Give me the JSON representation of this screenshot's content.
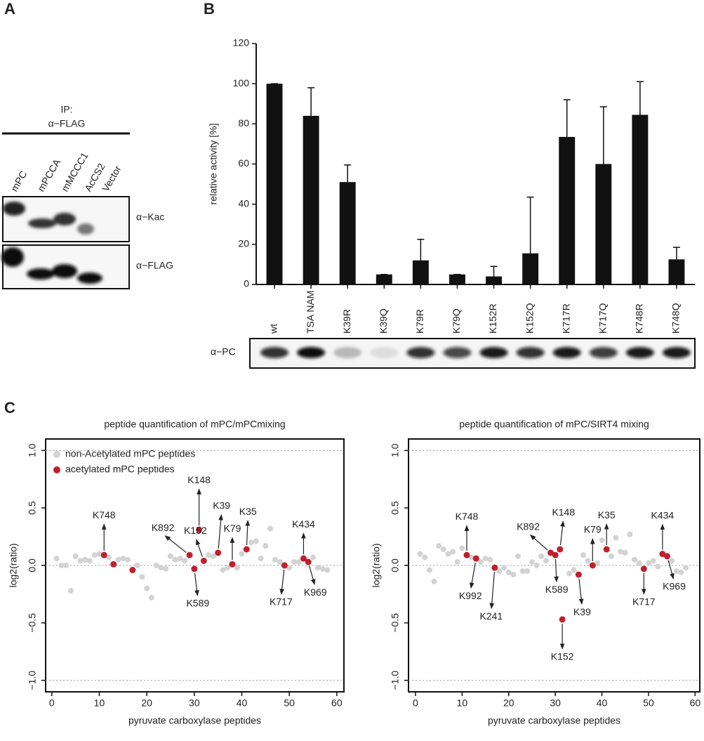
{
  "panel_labels": [
    "A",
    "B",
    "C"
  ],
  "blot_a": {
    "ip_label": "IP:",
    "ip_antibody": "α−FLAG",
    "lanes": [
      "mPC",
      "mPCCA",
      "mMCCC1",
      "AcCS2",
      "Vector"
    ],
    "rows": [
      "α−Kac",
      "α−FLAG"
    ]
  },
  "blot_b": {
    "label": "α−PC"
  },
  "chart_data": [
    {
      "type": "bar",
      "ylabel": "relative activity [%]",
      "categories": [
        "wt",
        "TSA NAM",
        "K39R",
        "K39Q",
        "K79R",
        "K79Q",
        "K152R",
        "K152Q",
        "K717R",
        "K717Q",
        "K748R",
        "K748Q"
      ],
      "values": [
        100,
        84,
        51,
        5,
        12,
        5,
        4,
        15.5,
        73.5,
        60,
        84.5,
        12.5
      ],
      "errors": [
        0,
        14,
        8.5,
        0,
        10.5,
        0,
        5,
        28,
        18.5,
        28.5,
        16.5,
        6
      ],
      "color": "#111111",
      "ylim": [
        0,
        120
      ],
      "yticks": [
        0,
        20,
        40,
        60,
        80,
        100,
        120
      ]
    },
    {
      "type": "scatter",
      "title": "peptide quantification of mPC/mPCmixing",
      "xlabel": "pyruvate carboxylase peptides",
      "ylabel": "log2(ratio)",
      "xlim": [
        -1.3,
        61.5
      ],
      "xticks": [
        0,
        10,
        20,
        30,
        40,
        50,
        60
      ],
      "ylim": [
        -1.1,
        1.1
      ],
      "yticks": [
        {
          "value": -1,
          "label": "−1.0"
        },
        {
          "value": -0.5,
          "label": "−0.5"
        },
        {
          "value": 0,
          "label": "0.0"
        },
        {
          "value": 0.5,
          "label": "0.5"
        },
        {
          "value": 1,
          "label": "1.0"
        }
      ],
      "hlines": [
        -1,
        0,
        1
      ],
      "legend": "upper left",
      "series": [
        {
          "name": "non-Acetylated mPC peptides",
          "color": "#d3d3d3",
          "x": [
            1,
            2,
            3,
            4,
            5,
            6,
            7,
            8,
            9,
            10,
            12,
            14,
            15,
            16,
            18,
            19,
            20,
            21,
            22,
            23,
            24,
            25,
            26,
            27,
            28,
            33,
            34,
            36,
            37,
            39,
            40,
            42,
            43,
            44,
            45,
            46,
            47,
            48,
            50,
            51,
            52,
            55,
            56,
            57,
            58
          ],
          "values": [
            0.06,
            0,
            0,
            -0.22,
            0.08,
            0.04,
            0.05,
            0.04,
            0.09,
            0.1,
            0.07,
            0.05,
            0.06,
            0.05,
            0,
            -0.1,
            -0.2,
            -0.28,
            0,
            -0.02,
            -0.03,
            0.08,
            0.05,
            0.06,
            0.04,
            0.09,
            0.08,
            -0.04,
            -0.02,
            -0.02,
            0.1,
            0.2,
            0.21,
            0.06,
            0.17,
            0.32,
            0.05,
            0.03,
            -0.02,
            0.03,
            0.03,
            0.07,
            -0.02,
            -0.03,
            -0.04
          ]
        },
        {
          "name": "acetylated mPC peptides",
          "color": "#c0202c",
          "x": [
            11,
            13,
            17,
            29,
            30,
            31,
            32,
            35,
            38,
            41,
            49,
            53,
            54
          ],
          "values": [
            0.09,
            0.01,
            -0.04,
            0.09,
            -0.03,
            0.31,
            0.04,
            0.11,
            0.01,
            0.14,
            0,
            0.06,
            0.03
          ],
          "labels": [
            "K748",
            null,
            null,
            "K892",
            "K589",
            "K148",
            "K152",
            "K39",
            "K79",
            "K35",
            "K717",
            "K434",
            "K969"
          ]
        }
      ]
    },
    {
      "type": "scatter",
      "title": "peptide quantification of mPC/SIRT4 mixing",
      "xlabel": "pyruvate carboxylase peptides",
      "ylabel": "log2(ratio)",
      "xlim": [
        -1.5,
        61
      ],
      "xticks": [
        0,
        10,
        20,
        30,
        40,
        50,
        60
      ],
      "ylim": [
        -1.1,
        1.1
      ],
      "yticks": [
        {
          "value": -1,
          "label": "−1.0"
        },
        {
          "value": -0.5,
          "label": "−0.5"
        },
        {
          "value": 0,
          "label": "0.0"
        },
        {
          "value": 0.5,
          "label": "0.5"
        },
        {
          "value": 1,
          "label": "1.0"
        }
      ],
      "hlines": [
        -1,
        0,
        1
      ],
      "legend": false,
      "series": [
        {
          "name": "non-Acetylated mPC peptides",
          "color": "#d3d3d3",
          "x": [
            1,
            2,
            3,
            4,
            5,
            6,
            7,
            8,
            9,
            10,
            12,
            14,
            15,
            16,
            18,
            19,
            20,
            21,
            22,
            23,
            24,
            25,
            26,
            27,
            28,
            33,
            34,
            36,
            37,
            39,
            40,
            42,
            43,
            44,
            45,
            46,
            47,
            48,
            50,
            51,
            52,
            55,
            56,
            57,
            58
          ],
          "values": [
            0.1,
            0.07,
            -0.04,
            -0.14,
            0.17,
            0.14,
            0.1,
            0.12,
            0.03,
            0.15,
            0.07,
            0.03,
            0.06,
            0.05,
            -0.05,
            -0.02,
            -0.06,
            -0.08,
            0.08,
            -0.05,
            -0.05,
            0.03,
            0,
            0.08,
            0.04,
            -0.07,
            -0.04,
            0.09,
            0.04,
            0.02,
            0.22,
            0.08,
            0.24,
            0.12,
            0.11,
            0.27,
            0.05,
            0.02,
            0.02,
            0.04,
            -0.01,
            0.04,
            -0.05,
            -0.06,
            -0.02
          ]
        },
        {
          "name": "acetylated mPC peptides",
          "color": "#c0202c",
          "x": [
            11,
            13,
            17,
            29,
            30,
            31,
            35,
            31.5,
            38,
            41,
            49,
            53,
            54
          ],
          "values": [
            0.09,
            0.06,
            -0.02,
            0.11,
            0.09,
            0.14,
            -0.08,
            -0.47,
            0,
            0.14,
            -0.03,
            0.1,
            0.08
          ],
          "labels": [
            "K748",
            "K992",
            "K241",
            "K892",
            "K589",
            "K148",
            "K39",
            "K152",
            "K79",
            "K35",
            "K717",
            "K434",
            "K969"
          ]
        }
      ]
    }
  ]
}
